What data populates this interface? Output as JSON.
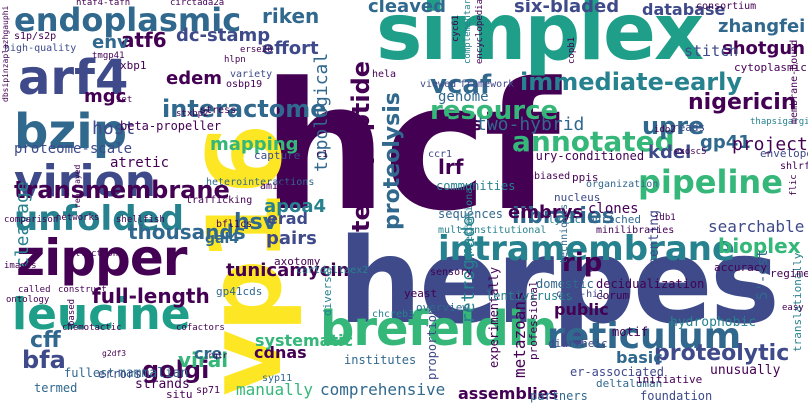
{
  "palette": {
    "dark_purple": "#440154",
    "indigo": "#3e4a89",
    "blue": "#31688e",
    "teal": "#26828e",
    "green": "#1f9e89",
    "mint": "#35b779",
    "lime": "#6ece58",
    "yellow": "#b5de2b",
    "bright_yellow": "#fde725"
  },
  "words": {
    "hcf": "hcf",
    "herpes": "herpes",
    "vp16": "vp16",
    "simplex": "simplex",
    "brefeldin": "brefeldin",
    "zipper": "zipper",
    "arf4": "arf4",
    "bzip": "bzip",
    "virion": "virion",
    "leucine": "leucine",
    "unfolded": "unfolded",
    "intramembrane": "intramembrane",
    "reticulum": "reticulum",
    "pipeline": "pipeline",
    "endoplasmic": "endoplasmic",
    "transmembrane": "transmembrane",
    "interactome": "interactome",
    "resource": "resource",
    "immediate_early": "immediate-early",
    "annotated": "annotated",
    "tetrapeptide": "tetrapeptide",
    "vcaf": "vcaf",
    "upre": "upre",
    "nigericin": "nigericin",
    "riken": "riken",
    "atf6": "atf6",
    "cleaved": "cleaved",
    "six_bladed": "six-bladed",
    "database": "database",
    "zhangfei": "zhangfei",
    "shotgun": "shotgun",
    "stitch": "stitch",
    "rip": "rip",
    "golgi": "golgi",
    "bfa": "bfa",
    "proteolytic": "proteolytic",
    "bioplex": "bioplex",
    "libraries": "libraries",
    "embrys": "embrys",
    "lrf": "lrf",
    "hsv": "hsv",
    "thousands": "thousands",
    "tunicamycin": "tunicamycin",
    "cff": "cff",
    "full_length": "full-length",
    "viral": "viral",
    "edem": "edem",
    "mgc": "mgc",
    "env": "env",
    "effort": "effort",
    "dc_stamp": "dc-stamp",
    "proteolysis": "proteolysis",
    "retrograde": "retrograde",
    "topological": "topological",
    "mapping": "mapping",
    "cleavage": "cleavage",
    "host": "host",
    "erad": "erad",
    "apoa4": "apoa4",
    "pairs": "pairs",
    "virus": "virus",
    "two_hybrid": "two-hybrid",
    "gp41": "gp41",
    "kdel": "kdel",
    "project": "project",
    "searchable": "searchable",
    "cdnas": "cdnas",
    "cre": "cre",
    "systematic": "systematic",
    "manually": "manually",
    "comprehensive": "comprehensive",
    "public": "public",
    "basic": "basic",
    "assemblies": "assemblies",
    "metazoans": "metazoans",
    "gal4": "gal4",
    "atretic": "atretic",
    "proteome_scale": "proteome-scale",
    "genome": "genome",
    "beta_propeller": "beta-propeller",
    "five_est": "5'-est",
    "clones": "clones",
    "sequences": "sequences",
    "injury_conditioned": "injury-conditioned",
    "communities": "communities",
    "mammalian": "mammalian",
    "strands": "strands",
    "errors": "errors",
    "fullest": "fullest",
    "termed": "termed",
    "situ": "situ",
    "syp11": "syp11",
    "sp71": "sp71",
    "partners": "partners",
    "foundation": "foundation",
    "deltaluman": "deltaluman",
    "er_associated": "er-associated",
    "unusually": "unusually",
    "initiative": "initiative",
    "motif": "motif",
    "hydrophobic": "hydrophobic",
    "representing": "representing",
    "translationally": "translationally",
    "accuracy": "accuracy",
    "regime": "regime",
    "corum": "corum",
    "decidualization": "decidualization",
    "domestic": "domestic",
    "professional": "professional",
    "diarrheic": "diarrheic",
    "experimentally": "experimentally",
    "proportion": "proportion",
    "institutes": "institutes",
    "lentiviruses": "lentiviruses",
    "overview": "overview",
    "yeast": "yeast",
    "chcreb3": "chcreb3",
    "ccsb_hi1": "ccsb-hi1",
    "minilibraries": "minilibraries",
    "multiinstitutional": "multiinstitutional",
    "axotomy": "axotomy",
    "cartdeltaex2": "cartdeltaex2",
    "gp41cds": "gp41cds",
    "diverse": "diverse",
    "nucleus": "nucleus",
    "unbiased": "unbiased",
    "ppis": "ppis",
    "organization": "organization",
    "enriched": "enriched",
    "lytic": "lytic",
    "techniques": "techniques",
    "heterointeractions": "heterointeractions",
    "amino": "amino",
    "trafficking": "trafficking",
    "bfl1cs": "bfl1cs",
    "sensory": "sensory",
    "capture": "capture",
    "c1": "c1",
    "ccr1": "ccr1",
    "international": "international",
    "framework": "framework",
    "viewed": "viewed",
    "reads": "reads",
    "exosc5": "exosc5",
    "envelope": "envelope",
    "shlrf": "shlrf",
    "thapsigargin": "thapsigargin",
    "idb1": "idb1",
    "idb2": "idb2",
    "hela": "hela",
    "stress": "stress",
    "osbp19": "osbp19",
    "variety": "variety",
    "xbp1": "xbp1",
    "stxbp2": "stxbp2",
    "erse26": "erse26",
    "hlpn": "hlpn",
    "tmgp41": "tmgp41",
    "set": "set",
    "s1p_s2p": "s1p/s2p",
    "high_quality": "high-quality",
    "htaf4_tafh": "htaf4-tafh",
    "circtada2a": "circtada2a",
    "cyc61": "cyc61",
    "complementary": "complementary",
    "encyclopedia": "encyclopedia",
    "copb1": "copb1",
    "consortium": "consortium",
    "cytoplasmic": "cytoplasmic",
    "membrane_bound": "membrane-bound",
    "comparison": "comparison",
    "networks": "networks",
    "shellfish": "shellfish",
    "collections": "collections",
    "images": "images",
    "called": "called",
    "construct": "construct",
    "ontology": "ontology",
    "based": "based",
    "chemotactic": "chemotactic",
    "cofactors": "cofactors",
    "g2df3": "g2df3",
    "rqlr": "rqlr",
    "easy": "easy",
    "dbsipinzaplazhgauphi": "dbsipinzaplazhgauphi",
    "rearrayed": "rearrayed",
    "flic": "flic"
  }
}
